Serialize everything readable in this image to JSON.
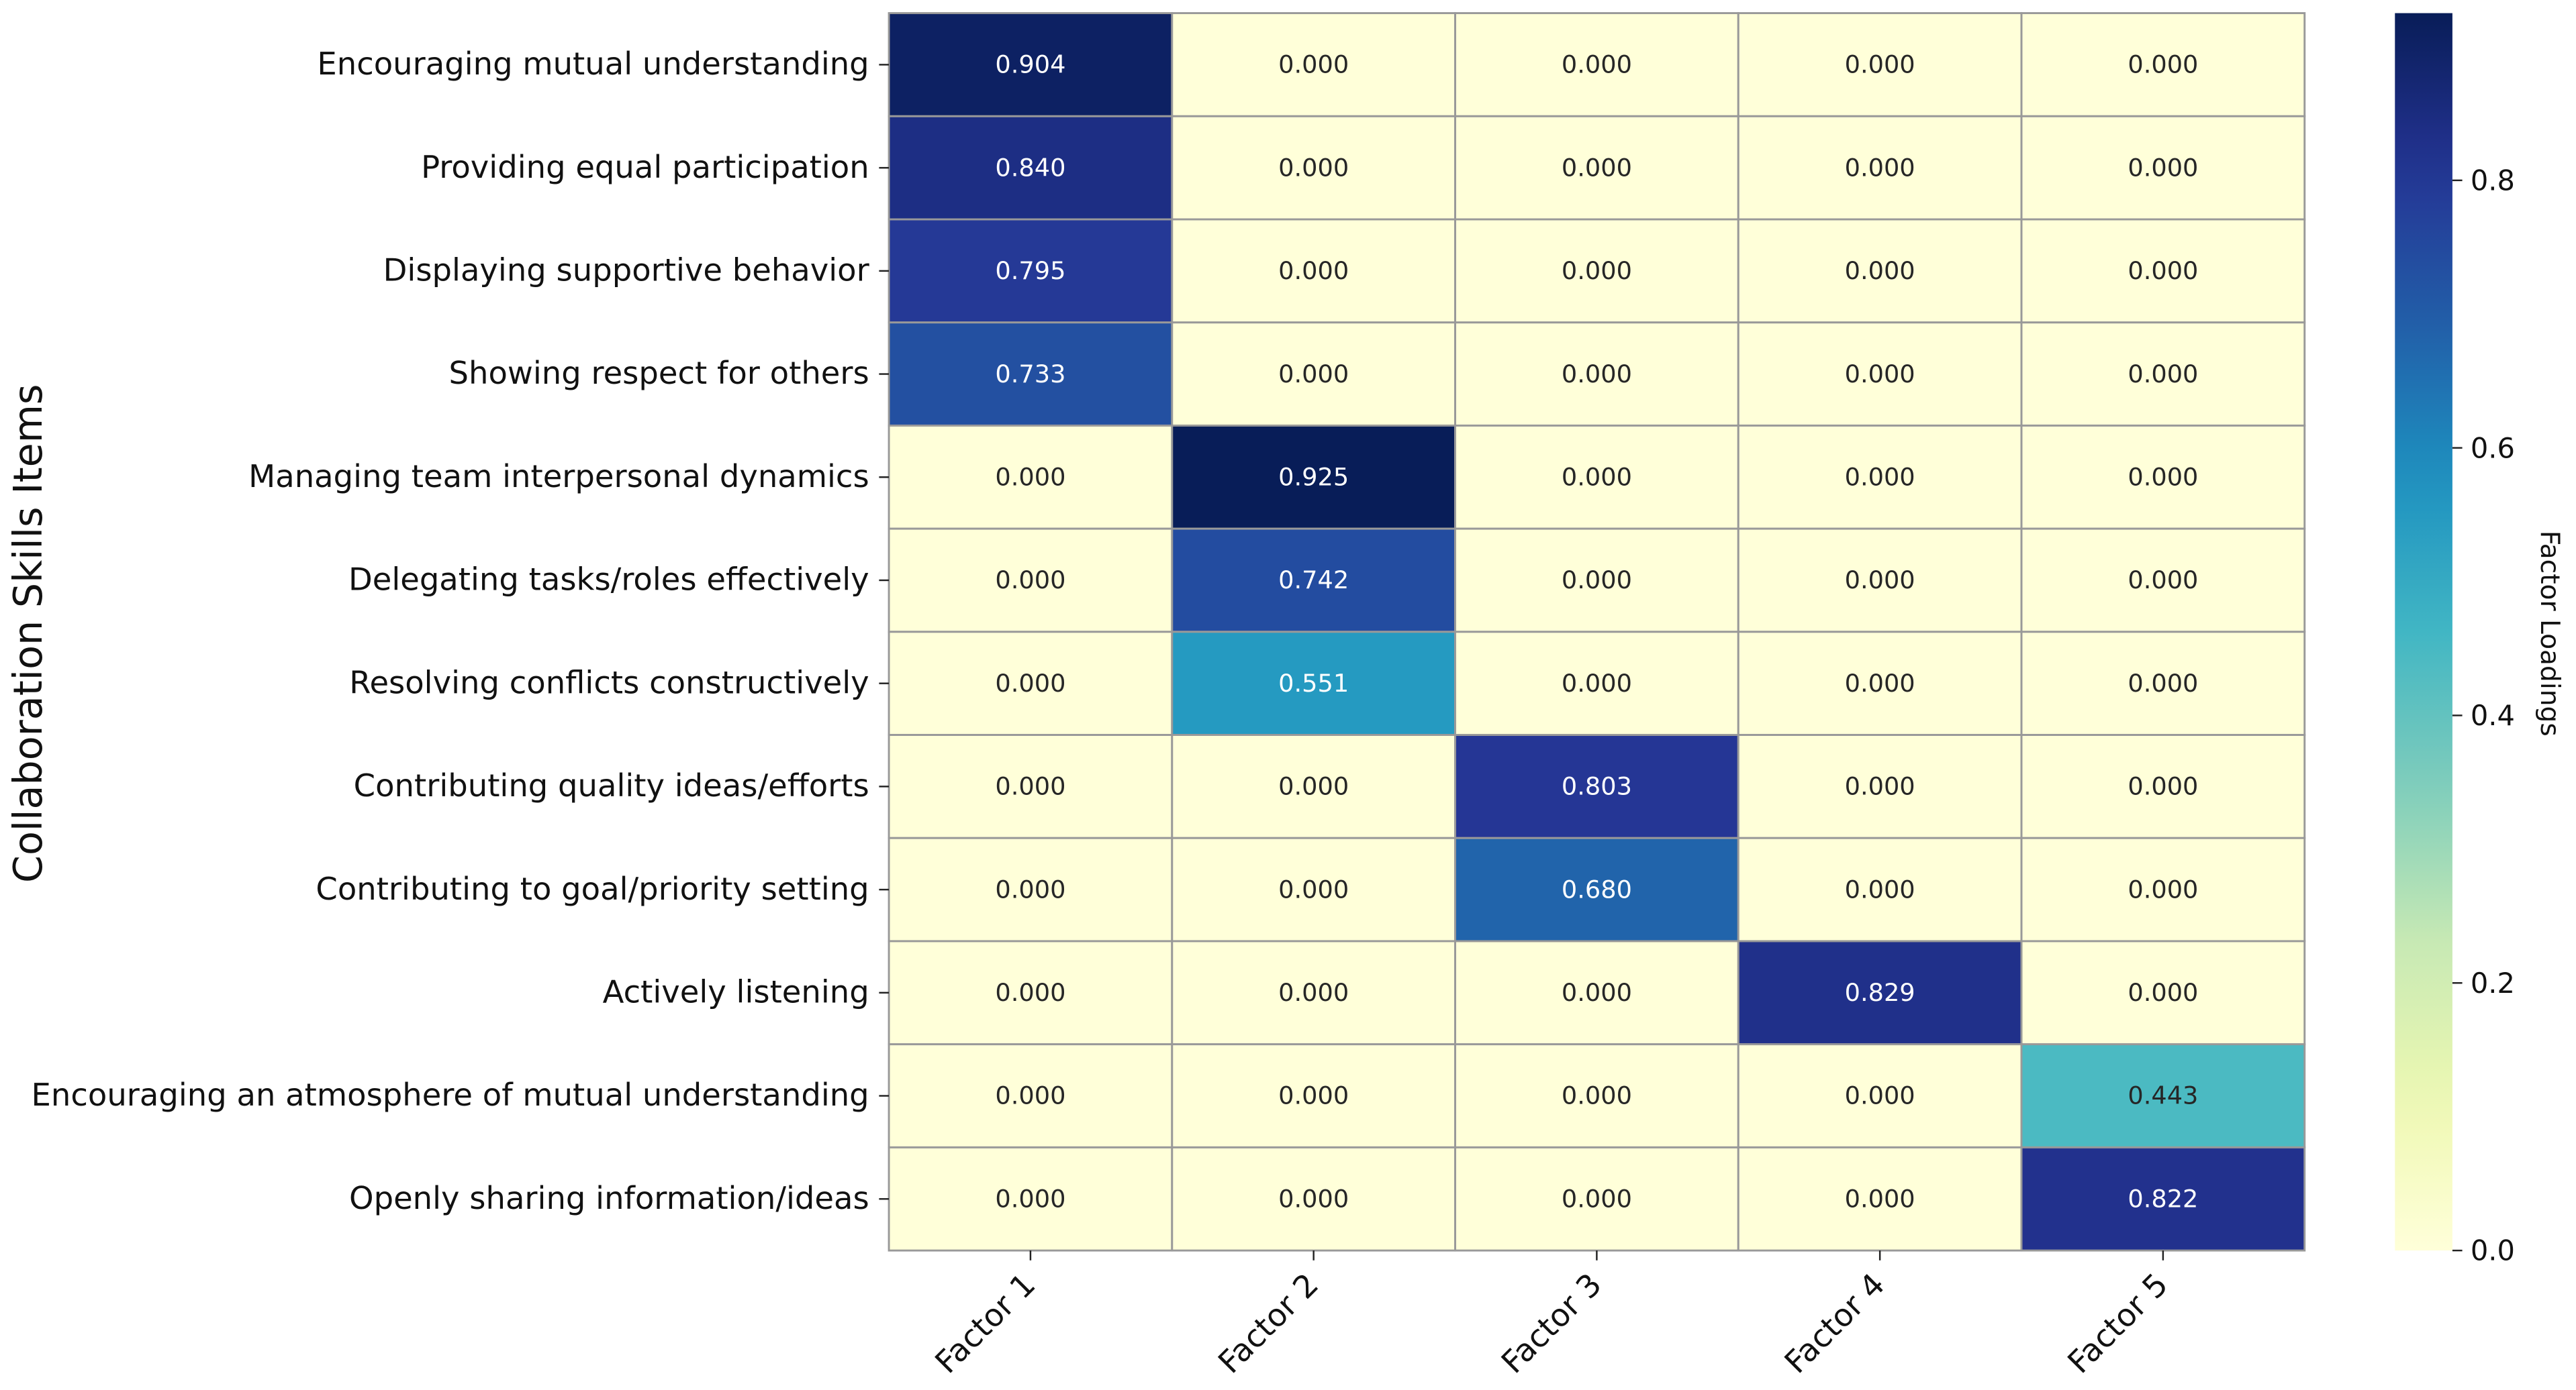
{
  "chart_data": {
    "type": "heatmap",
    "title": "",
    "xlabel": "",
    "ylabel": "Collaboration Skills Items",
    "colorbar_label": "Factor Loadings",
    "colormap": "YlGnBu",
    "color_range": [
      0.0,
      0.925
    ],
    "colorbar_ticks": [
      "0.0",
      "0.2",
      "0.4",
      "0.6",
      "0.8"
    ],
    "x_categories": [
      "Factor 1",
      "Factor 2",
      "Factor 3",
      "Factor 4",
      "Factor 5"
    ],
    "y_categories": [
      "Encouraging mutual understanding",
      "Providing equal participation",
      "Displaying supportive behavior",
      "Showing respect for others",
      "Managing team interpersonal dynamics",
      "Delegating tasks/roles effectively",
      "Resolving conflicts constructively",
      "Contributing quality ideas/efforts",
      "Contributing to goal/priority setting",
      "Actively listening",
      "Encouraging an atmosphere of mutual understanding",
      "Openly sharing information/ideas"
    ],
    "values": [
      [
        0.904,
        0.0,
        0.0,
        0.0,
        0.0
      ],
      [
        0.84,
        0.0,
        0.0,
        0.0,
        0.0
      ],
      [
        0.795,
        0.0,
        0.0,
        0.0,
        0.0
      ],
      [
        0.733,
        0.0,
        0.0,
        0.0,
        0.0
      ],
      [
        0.0,
        0.925,
        0.0,
        0.0,
        0.0
      ],
      [
        0.0,
        0.742,
        0.0,
        0.0,
        0.0
      ],
      [
        0.0,
        0.551,
        0.0,
        0.0,
        0.0
      ],
      [
        0.0,
        0.0,
        0.803,
        0.0,
        0.0
      ],
      [
        0.0,
        0.0,
        0.68,
        0.0,
        0.0
      ],
      [
        0.0,
        0.0,
        0.0,
        0.829,
        0.0
      ],
      [
        0.0,
        0.0,
        0.0,
        0.0,
        0.443
      ],
      [
        0.0,
        0.0,
        0.0,
        0.0,
        0.822
      ]
    ],
    "annotation_format": "0.000",
    "grid_color": "#999999"
  }
}
